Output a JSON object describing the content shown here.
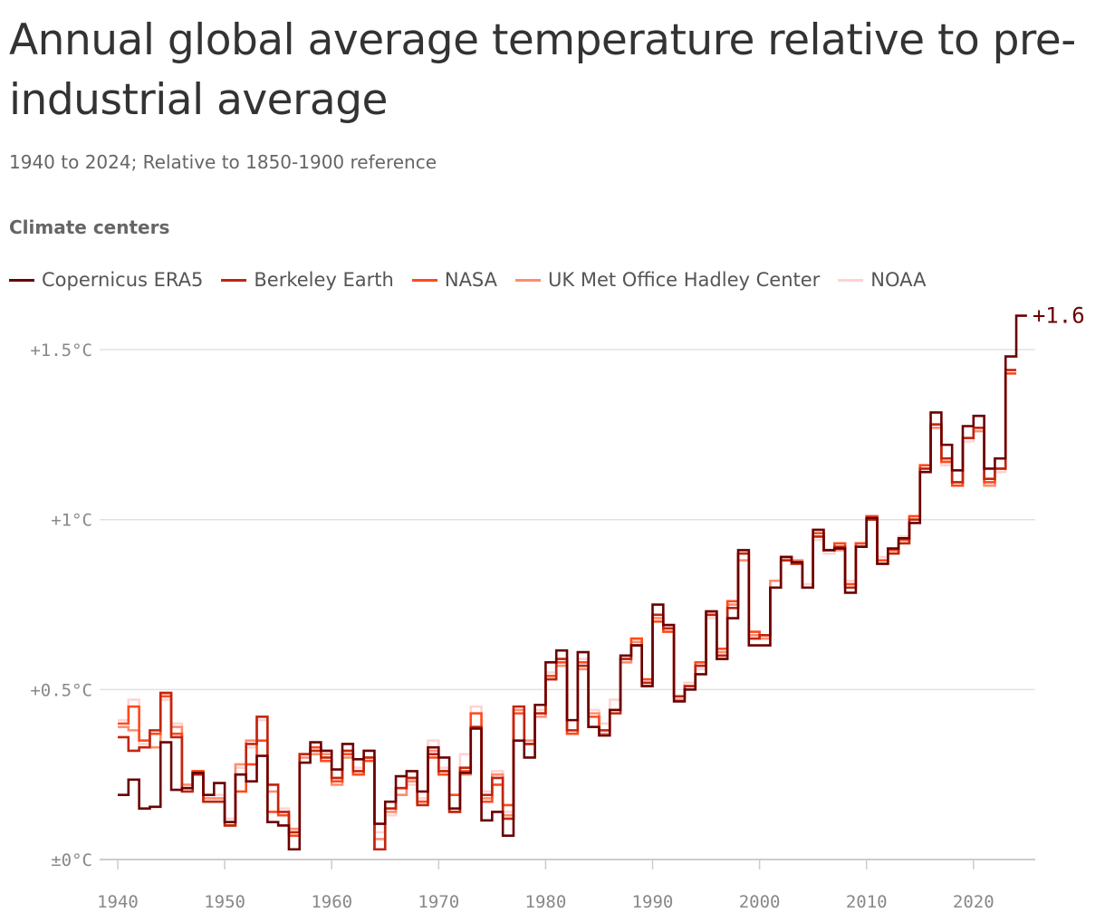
{
  "chart_data": {
    "type": "line",
    "title": "Annual global average temperature relative to pre-industrial average",
    "subtitle": "1940 to 2024; Relative to 1850-1900 reference",
    "legend_title": "Climate centers",
    "legend_placement": "top-left",
    "xlabel": "",
    "ylabel": "",
    "x_start": 1940,
    "xlim": [
      1940,
      2025
    ],
    "ylim": [
      0,
      1.6
    ],
    "grid": true,
    "x_ticks": [
      "1940",
      "1950",
      "1960",
      "1970",
      "1980",
      "1990",
      "2000",
      "2010",
      "2020"
    ],
    "y_ticks": [
      {
        "value": 0,
        "label": "±0°C"
      },
      {
        "value": 0.5,
        "label": "+0.5°C"
      },
      {
        "value": 1,
        "label": "+1°C"
      },
      {
        "value": 1.5,
        "label": "+1.5°C"
      }
    ],
    "end_label": "+1.6",
    "series": [
      {
        "name": "NOAA",
        "color": "#ffd3d3",
        "values": [
          0.41,
          0.47,
          0.34,
          0.33,
          0.47,
          0.4,
          0.22,
          0.25,
          0.19,
          0.19,
          0.12,
          0.27,
          0.33,
          0.41,
          0.22,
          0.15,
          0.09,
          0.31,
          0.33,
          0.32,
          0.24,
          0.31,
          0.27,
          0.3,
          0.08,
          0.13,
          0.19,
          0.22,
          0.18,
          0.35,
          0.27,
          0.15,
          0.31,
          0.45,
          0.2,
          0.26,
          0.14,
          0.45,
          0.35,
          0.44,
          0.55,
          0.59,
          0.38,
          0.59,
          0.44,
          0.4,
          0.47,
          0.6,
          0.64,
          0.53,
          0.71,
          0.69,
          0.48,
          0.52,
          0.56,
          0.71,
          0.61,
          0.75,
          0.88,
          0.66,
          0.66,
          0.8,
          0.88,
          0.88,
          0.81,
          0.94,
          0.9,
          0.92,
          0.82,
          0.93,
          1.01,
          0.89,
          0.91,
          0.95,
          1.01,
          1.16,
          1.27,
          1.16,
          1.11,
          1.23,
          1.26,
          1.1,
          1.14,
          1.43
        ]
      },
      {
        "name": "UK Met Office Hadley Center",
        "color": "#ff8c6e",
        "values": [
          0.39,
          0.38,
          0.35,
          0.33,
          0.49,
          0.39,
          0.22,
          0.26,
          0.18,
          0.18,
          0.11,
          0.28,
          0.35,
          0.42,
          0.2,
          0.14,
          0.09,
          0.3,
          0.31,
          0.31,
          0.22,
          0.3,
          0.25,
          0.29,
          0.06,
          0.14,
          0.19,
          0.23,
          0.17,
          0.32,
          0.26,
          0.14,
          0.25,
          0.39,
          0.18,
          0.25,
          0.13,
          0.44,
          0.35,
          0.42,
          0.53,
          0.57,
          0.37,
          0.56,
          0.43,
          0.37,
          0.44,
          0.58,
          0.64,
          0.51,
          0.71,
          0.68,
          0.47,
          0.5,
          0.57,
          0.72,
          0.61,
          0.75,
          0.88,
          0.66,
          0.65,
          0.82,
          0.88,
          0.88,
          0.8,
          0.95,
          0.91,
          0.91,
          0.81,
          0.93,
          1.0,
          0.87,
          0.9,
          0.94,
          1.0,
          1.15,
          1.27,
          1.17,
          1.11,
          1.24,
          1.26,
          1.1,
          1.15,
          1.43
        ]
      },
      {
        "name": "NASA",
        "color": "#ff4a1c",
        "values": [
          0.4,
          0.45,
          0.35,
          0.37,
          0.48,
          0.37,
          0.21,
          0.26,
          0.17,
          0.17,
          0.1,
          0.2,
          0.28,
          0.35,
          0.14,
          0.13,
          0.07,
          0.31,
          0.33,
          0.29,
          0.23,
          0.31,
          0.25,
          0.29,
          0.03,
          0.15,
          0.21,
          0.24,
          0.17,
          0.3,
          0.25,
          0.19,
          0.26,
          0.43,
          0.17,
          0.22,
          0.16,
          0.43,
          0.34,
          0.43,
          0.54,
          0.58,
          0.37,
          0.58,
          0.42,
          0.38,
          0.44,
          0.59,
          0.65,
          0.53,
          0.7,
          0.67,
          0.48,
          0.51,
          0.58,
          0.73,
          0.62,
          0.76,
          0.9,
          0.67,
          0.66,
          0.8,
          0.89,
          0.87,
          0.8,
          0.96,
          0.91,
          0.93,
          0.81,
          0.93,
          1.01,
          0.88,
          0.91,
          0.94,
          1.01,
          1.16,
          1.28,
          1.17,
          1.1,
          1.24,
          1.27,
          1.11,
          1.15,
          1.43
        ]
      },
      {
        "name": "Berkeley Earth",
        "color": "#c0260f",
        "values": [
          0.36,
          0.32,
          0.33,
          0.38,
          0.49,
          0.36,
          0.2,
          0.25,
          0.17,
          0.17,
          0.1,
          0.25,
          0.34,
          0.42,
          0.22,
          0.14,
          0.08,
          0.31,
          0.32,
          0.3,
          0.24,
          0.32,
          0.26,
          0.3,
          0.03,
          0.15,
          0.21,
          0.24,
          0.16,
          0.31,
          0.26,
          0.14,
          0.27,
          0.39,
          0.19,
          0.24,
          0.12,
          0.45,
          0.34,
          0.43,
          0.53,
          0.59,
          0.38,
          0.57,
          0.39,
          0.38,
          0.43,
          0.59,
          0.63,
          0.52,
          0.72,
          0.68,
          0.48,
          0.51,
          0.57,
          0.72,
          0.6,
          0.74,
          0.9,
          0.65,
          0.66,
          0.8,
          0.88,
          0.87,
          0.8,
          0.95,
          0.91,
          0.92,
          0.8,
          0.92,
          1.0,
          0.87,
          0.9,
          0.93,
          1.0,
          1.15,
          1.28,
          1.18,
          1.11,
          1.24,
          1.27,
          1.12,
          1.15,
          1.44
        ]
      },
      {
        "name": "Copernicus ERA5",
        "color": "#6b0000",
        "values": [
          0.19,
          0.235,
          0.15,
          0.155,
          0.345,
          0.205,
          0.21,
          0.255,
          0.19,
          0.225,
          0.11,
          0.25,
          0.23,
          0.305,
          0.11,
          0.1,
          0.03,
          0.285,
          0.345,
          0.32,
          0.265,
          0.34,
          0.295,
          0.32,
          0.105,
          0.17,
          0.245,
          0.26,
          0.2,
          0.33,
          0.3,
          0.15,
          0.255,
          0.385,
          0.115,
          0.14,
          0.07,
          0.35,
          0.3,
          0.455,
          0.58,
          0.615,
          0.41,
          0.61,
          0.39,
          0.365,
          0.44,
          0.6,
          0.63,
          0.51,
          0.75,
          0.69,
          0.465,
          0.5,
          0.545,
          0.73,
          0.59,
          0.71,
          0.91,
          0.63,
          0.63,
          0.8,
          0.89,
          0.875,
          0.8,
          0.97,
          0.91,
          0.915,
          0.785,
          0.92,
          1.005,
          0.87,
          0.915,
          0.945,
          0.99,
          1.14,
          1.315,
          1.22,
          1.145,
          1.275,
          1.305,
          1.15,
          1.18,
          1.48,
          1.6
        ]
      }
    ]
  }
}
